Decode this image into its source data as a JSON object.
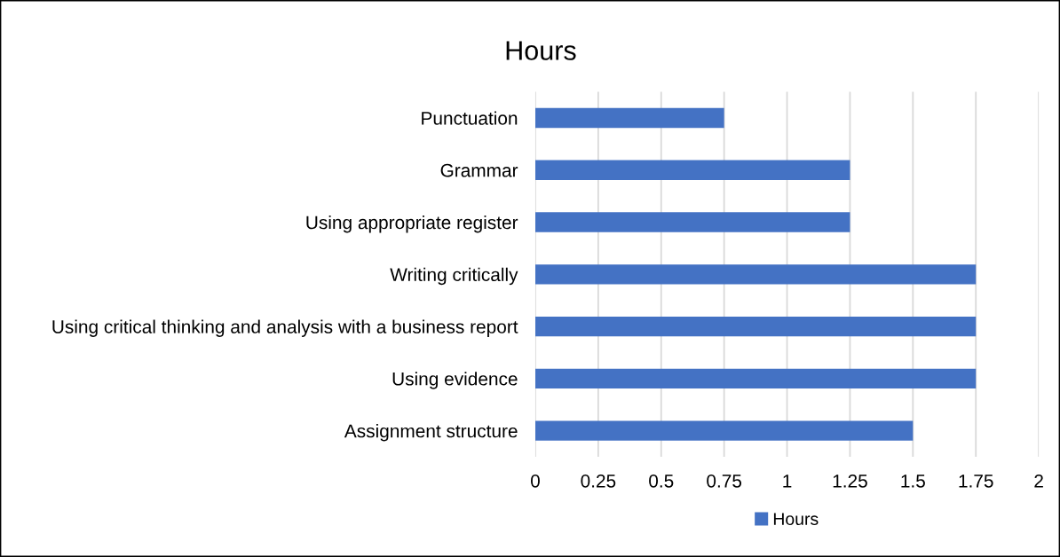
{
  "chart_data": {
    "type": "bar",
    "orientation": "horizontal",
    "title": "Hours",
    "categories": [
      "Punctuation",
      "Grammar",
      "Using appropriate register",
      "Writing critically",
      "Using critical thinking and analysis with a business report",
      "Using evidence",
      "Assignment structure"
    ],
    "series": [
      {
        "name": "Hours",
        "color": "#4472c4",
        "values": [
          0.75,
          1.25,
          1.25,
          1.75,
          1.75,
          1.75,
          1.5
        ]
      }
    ],
    "xlim": [
      0,
      2
    ],
    "xticks": [
      0,
      0.25,
      0.5,
      0.75,
      1,
      1.25,
      1.5,
      1.75,
      2
    ],
    "grid": "x",
    "legend": "bottom"
  }
}
